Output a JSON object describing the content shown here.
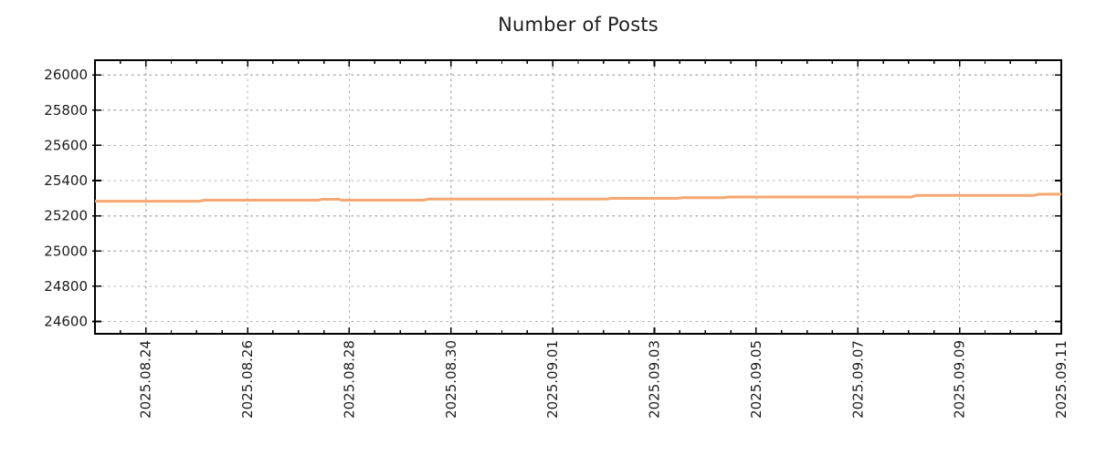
{
  "chart_data": {
    "type": "line",
    "title": "Number of Posts",
    "xlabel": "",
    "ylabel": "",
    "legend": "none",
    "grid": true,
    "x_axis": {
      "unit": "date",
      "start_date": "2025.08.23",
      "end_date": "2025.09.11",
      "range_days": [
        0,
        19
      ],
      "minor_tick_interval_days": 0.5,
      "major_ticks": [
        {
          "day": 1,
          "label": "2025.08.24"
        },
        {
          "day": 3,
          "label": "2025.08.26"
        },
        {
          "day": 5,
          "label": "2025.08.28"
        },
        {
          "day": 7,
          "label": "2025.08.30"
        },
        {
          "day": 9,
          "label": "2025.09.01"
        },
        {
          "day": 11,
          "label": "2025.09.03"
        },
        {
          "day": 13,
          "label": "2025.09.05"
        },
        {
          "day": 15,
          "label": "2025.09.07"
        },
        {
          "day": 17,
          "label": "2025.09.09"
        },
        {
          "day": 19,
          "label": "2025.09.11"
        }
      ]
    },
    "y_axis": {
      "range": [
        24530,
        26084
      ],
      "ticks": [
        24600,
        24800,
        25000,
        25200,
        25400,
        25600,
        25800,
        26000
      ]
    },
    "series": [
      {
        "name": "Number of Posts",
        "color": "#f5a871",
        "points": [
          [
            0.0,
            25283
          ],
          [
            2.05,
            25283
          ],
          [
            2.15,
            25289
          ],
          [
            4.4,
            25289
          ],
          [
            4.45,
            25294
          ],
          [
            4.8,
            25294
          ],
          [
            4.85,
            25289
          ],
          [
            6.45,
            25289
          ],
          [
            6.55,
            25295
          ],
          [
            10.05,
            25295
          ],
          [
            10.15,
            25299
          ],
          [
            11.45,
            25299
          ],
          [
            11.55,
            25303
          ],
          [
            12.35,
            25303
          ],
          [
            12.45,
            25307
          ],
          [
            16.05,
            25307
          ],
          [
            16.15,
            25316
          ],
          [
            18.45,
            25316
          ],
          [
            18.55,
            25322
          ],
          [
            19.0,
            25323
          ]
        ]
      }
    ]
  },
  "colors": {
    "background": "#ffffff",
    "line": "#f5a871",
    "grid": "#b0b0b0",
    "axis": "#000000",
    "text": "#1c1c1c"
  }
}
